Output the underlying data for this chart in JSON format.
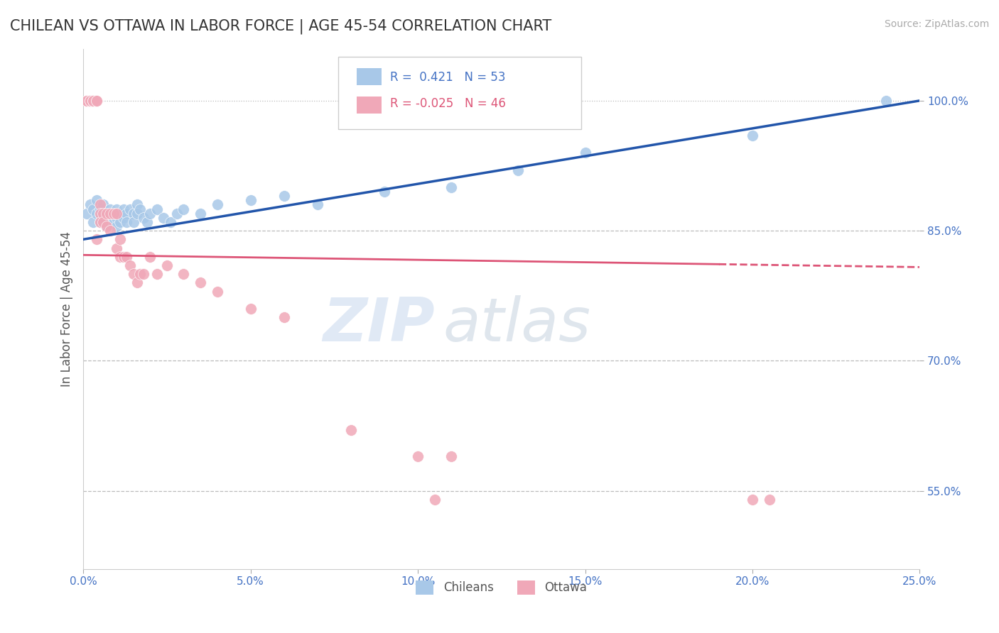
{
  "title": "CHILEAN VS OTTAWA IN LABOR FORCE | AGE 45-54 CORRELATION CHART",
  "source_text": "Source: ZipAtlas.com",
  "ylabel": "In Labor Force | Age 45-54",
  "xlim": [
    0.0,
    0.25
  ],
  "ylim": [
    0.46,
    1.06
  ],
  "xticks": [
    0.0,
    0.05,
    0.1,
    0.15,
    0.2,
    0.25
  ],
  "xticklabels": [
    "0.0%",
    "5.0%",
    "10.0%",
    "15.0%",
    "20.0%",
    "25.0%"
  ],
  "yticks": [
    0.55,
    0.7,
    0.85,
    1.0
  ],
  "yticklabels": [
    "55.0%",
    "70.0%",
    "85.0%",
    "100.0%"
  ],
  "grid_color": "#bbbbbb",
  "axis_color": "#4472c4",
  "watermark_zip": "ZIP",
  "watermark_atlas": "atlas",
  "legend_R_blue": "0.421",
  "legend_N_blue": "53",
  "legend_R_pink": "-0.025",
  "legend_N_pink": "46",
  "blue_color": "#a8c8e8",
  "pink_color": "#f0a8b8",
  "blue_line_color": "#2255aa",
  "pink_line_color": "#dd5577",
  "chileans_x": [
    0.001,
    0.002,
    0.003,
    0.003,
    0.004,
    0.004,
    0.005,
    0.005,
    0.005,
    0.006,
    0.006,
    0.006,
    0.007,
    0.007,
    0.007,
    0.008,
    0.008,
    0.009,
    0.009,
    0.01,
    0.01,
    0.01,
    0.011,
    0.011,
    0.012,
    0.012,
    0.013,
    0.013,
    0.014,
    0.015,
    0.015,
    0.016,
    0.016,
    0.017,
    0.018,
    0.019,
    0.02,
    0.022,
    0.024,
    0.026,
    0.028,
    0.03,
    0.035,
    0.04,
    0.05,
    0.06,
    0.07,
    0.09,
    0.11,
    0.13,
    0.15,
    0.2,
    0.24
  ],
  "chileans_y": [
    0.87,
    0.88,
    0.86,
    0.875,
    0.885,
    0.87,
    0.87,
    0.86,
    0.875,
    0.865,
    0.88,
    0.86,
    0.855,
    0.87,
    0.855,
    0.875,
    0.865,
    0.87,
    0.86,
    0.875,
    0.865,
    0.855,
    0.87,
    0.86,
    0.875,
    0.865,
    0.87,
    0.86,
    0.875,
    0.87,
    0.86,
    0.88,
    0.87,
    0.875,
    0.865,
    0.86,
    0.87,
    0.875,
    0.865,
    0.86,
    0.87,
    0.875,
    0.87,
    0.88,
    0.885,
    0.89,
    0.88,
    0.895,
    0.9,
    0.92,
    0.94,
    0.96,
    1.0
  ],
  "ottawa_x": [
    0.001,
    0.001,
    0.002,
    0.002,
    0.002,
    0.003,
    0.003,
    0.003,
    0.004,
    0.004,
    0.004,
    0.005,
    0.005,
    0.005,
    0.006,
    0.006,
    0.007,
    0.007,
    0.008,
    0.008,
    0.009,
    0.01,
    0.01,
    0.011,
    0.011,
    0.012,
    0.013,
    0.014,
    0.015,
    0.016,
    0.017,
    0.018,
    0.02,
    0.022,
    0.025,
    0.03,
    0.035,
    0.04,
    0.05,
    0.06,
    0.08,
    0.1,
    0.11,
    0.2,
    0.105,
    0.205
  ],
  "ottawa_y": [
    1.0,
    1.0,
    1.0,
    1.0,
    1.0,
    1.0,
    1.0,
    1.0,
    1.0,
    1.0,
    0.84,
    0.88,
    0.87,
    0.86,
    0.87,
    0.86,
    0.87,
    0.855,
    0.87,
    0.85,
    0.87,
    0.87,
    0.83,
    0.84,
    0.82,
    0.82,
    0.82,
    0.81,
    0.8,
    0.79,
    0.8,
    0.8,
    0.82,
    0.8,
    0.81,
    0.8,
    0.79,
    0.78,
    0.76,
    0.75,
    0.62,
    0.59,
    0.59,
    0.54,
    0.54,
    0.54
  ]
}
